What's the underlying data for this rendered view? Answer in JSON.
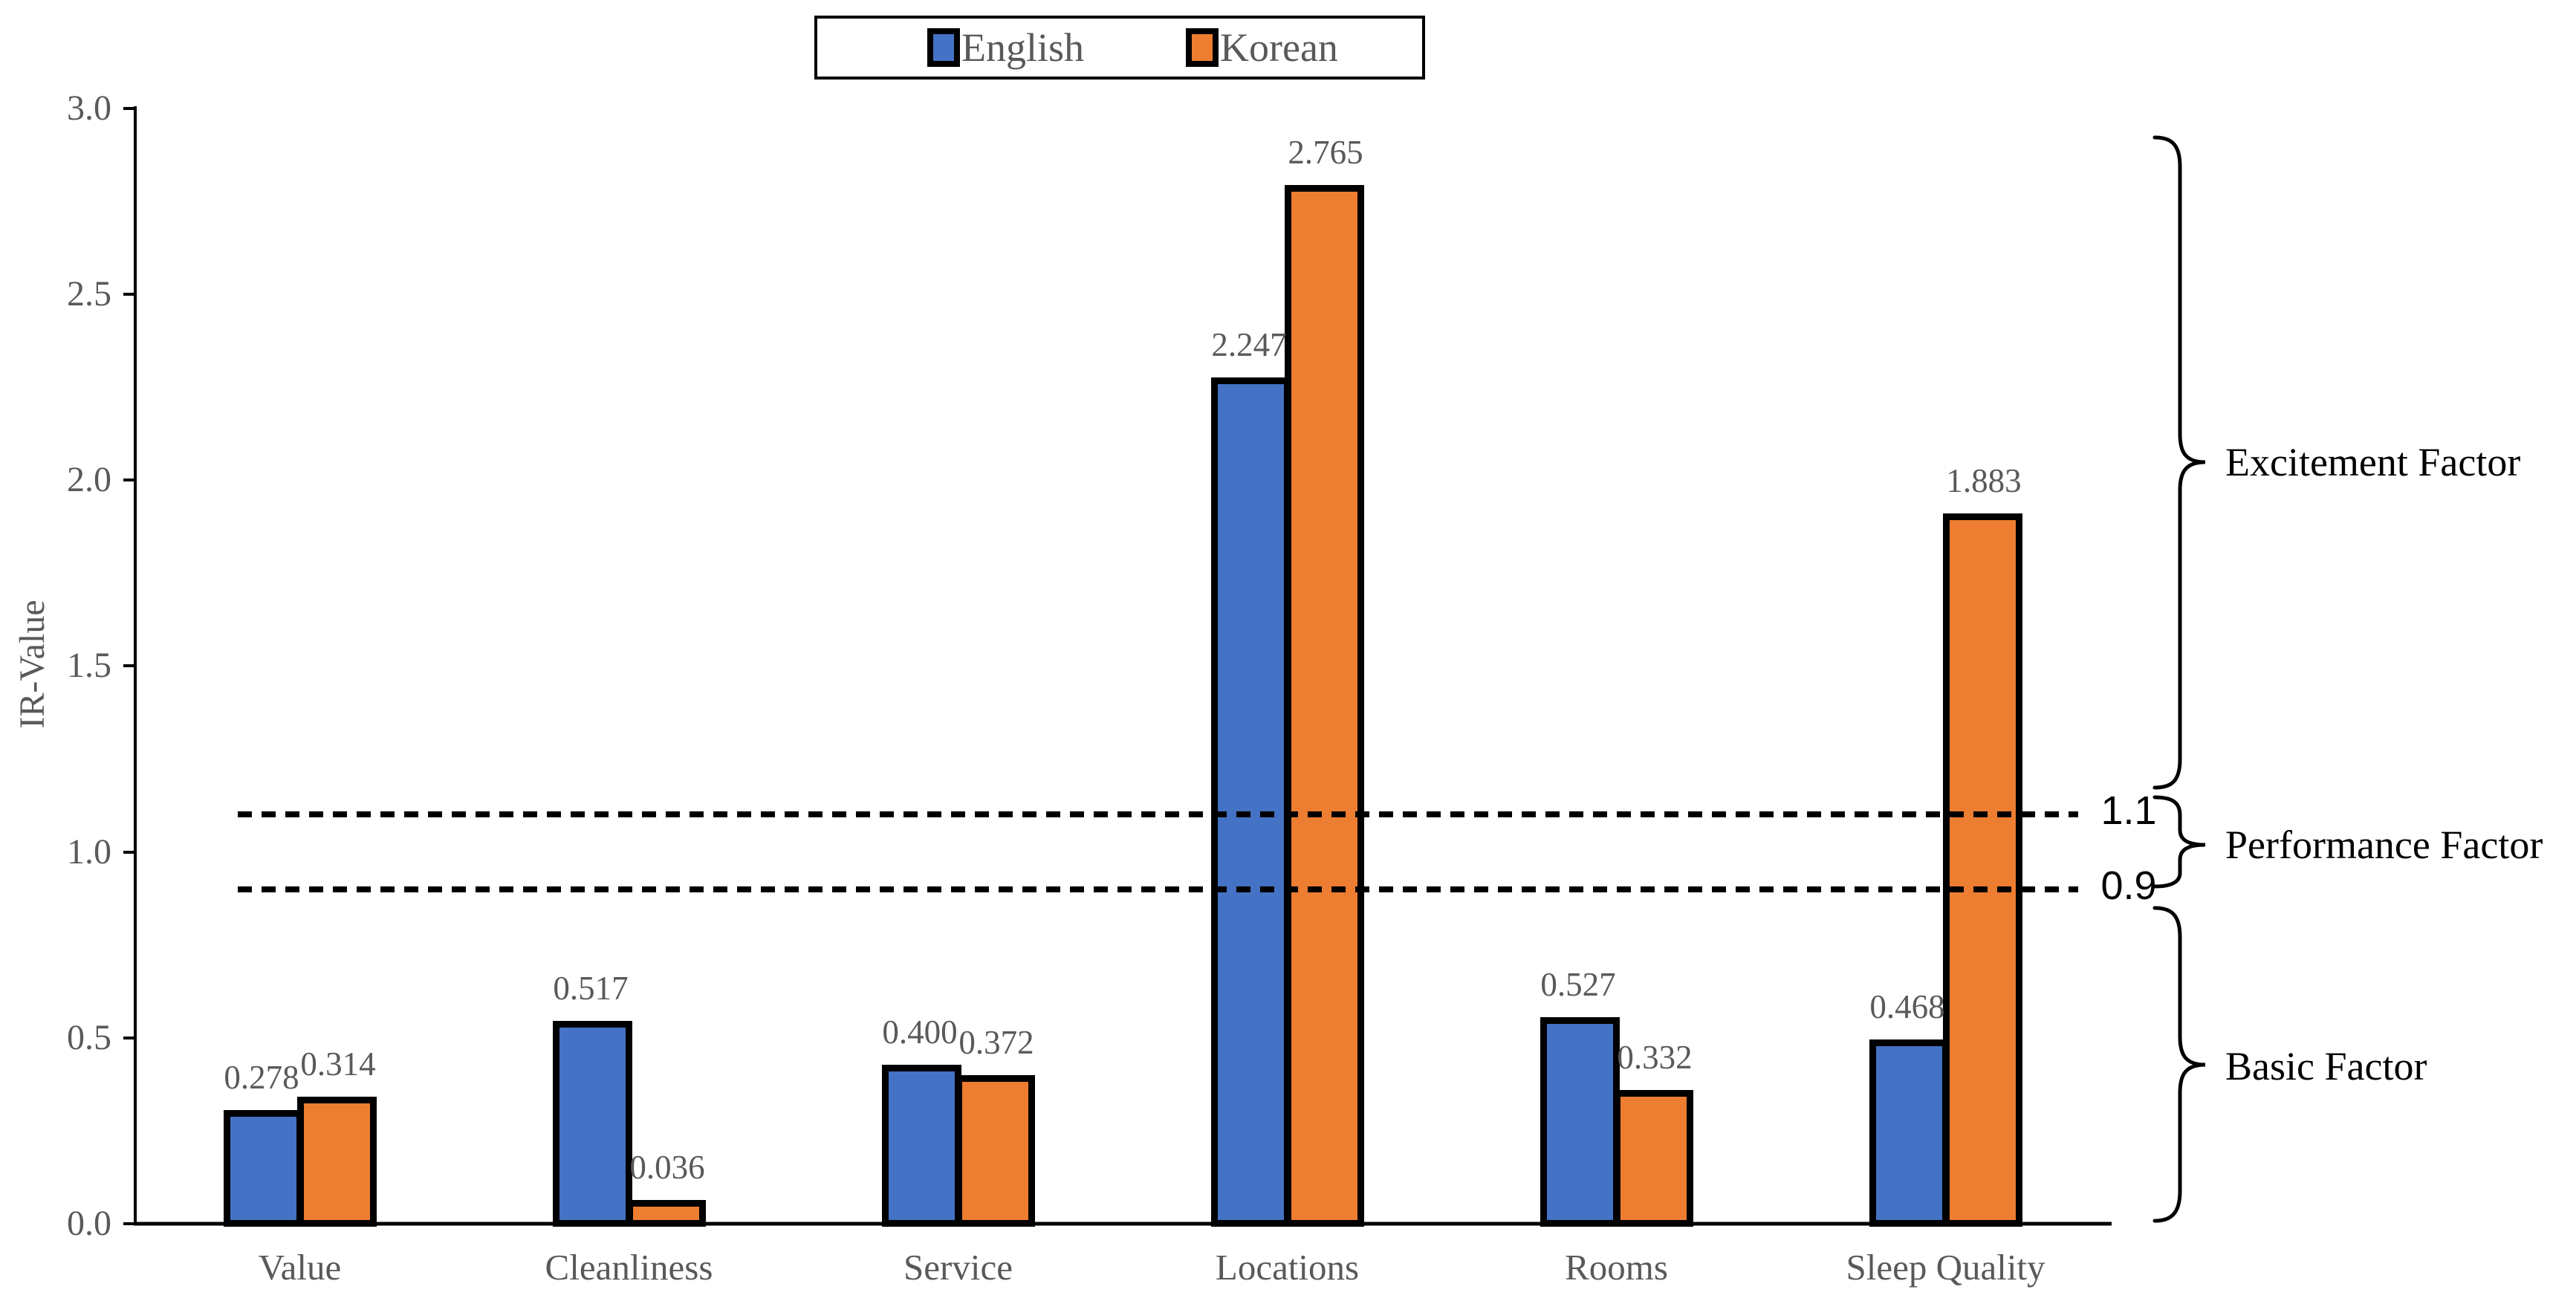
{
  "chart_data": {
    "type": "bar",
    "title": "",
    "xlabel": "",
    "ylabel": "IR-Value",
    "ylim": [
      0.0,
      3.0
    ],
    "grid": false,
    "legend_position": "top-center",
    "categories": [
      "Value",
      "Cleanliness",
      "Service",
      "Locations",
      "Rooms",
      "Sleep Quality"
    ],
    "series": [
      {
        "name": "English",
        "color": "#4472C4",
        "values": [
          0.278,
          0.517,
          0.4,
          2.247,
          0.527,
          0.468
        ],
        "value_labels": [
          "0.278",
          "0.517",
          "0.400",
          "2.247",
          "0.527",
          "0.468"
        ]
      },
      {
        "name": "Korean",
        "color": "#ED7D31",
        "values": [
          0.314,
          0.036,
          0.372,
          2.765,
          0.332,
          1.883
        ],
        "value_labels": [
          "0.314",
          "0.036",
          "0.372",
          "2.765",
          "0.332",
          "1.883"
        ]
      }
    ],
    "y_ticks": [
      {
        "label": "3.0",
        "value": 3.0
      },
      {
        "label": "2.5",
        "value": 2.5
      },
      {
        "label": "2.0",
        "value": 2.0
      },
      {
        "label": "1.5",
        "value": 1.5
      },
      {
        "label": "1.0",
        "value": 1.0
      },
      {
        "label": "0.5",
        "value": 0.5
      },
      {
        "label": "0.0",
        "value": 0.0
      }
    ],
    "reference_lines": [
      {
        "label": "1.1",
        "value": 1.1,
        "style": "dashed"
      },
      {
        "label": "0.9",
        "value": 0.9,
        "style": "dashed"
      }
    ],
    "factor_annotations": [
      {
        "label": "Excitement Factor",
        "range": [
          1.1,
          3.0
        ]
      },
      {
        "label": "Performance Factor",
        "range": [
          0.9,
          1.1
        ]
      },
      {
        "label": "Basic Factor",
        "range": [
          0.0,
          0.9
        ]
      }
    ]
  },
  "colors": {
    "bar_border": "#000000",
    "axis": "#000000",
    "tick_text": "#595959",
    "value_text": "#595959",
    "annotation_text": "#000000",
    "background": "#ffffff"
  }
}
